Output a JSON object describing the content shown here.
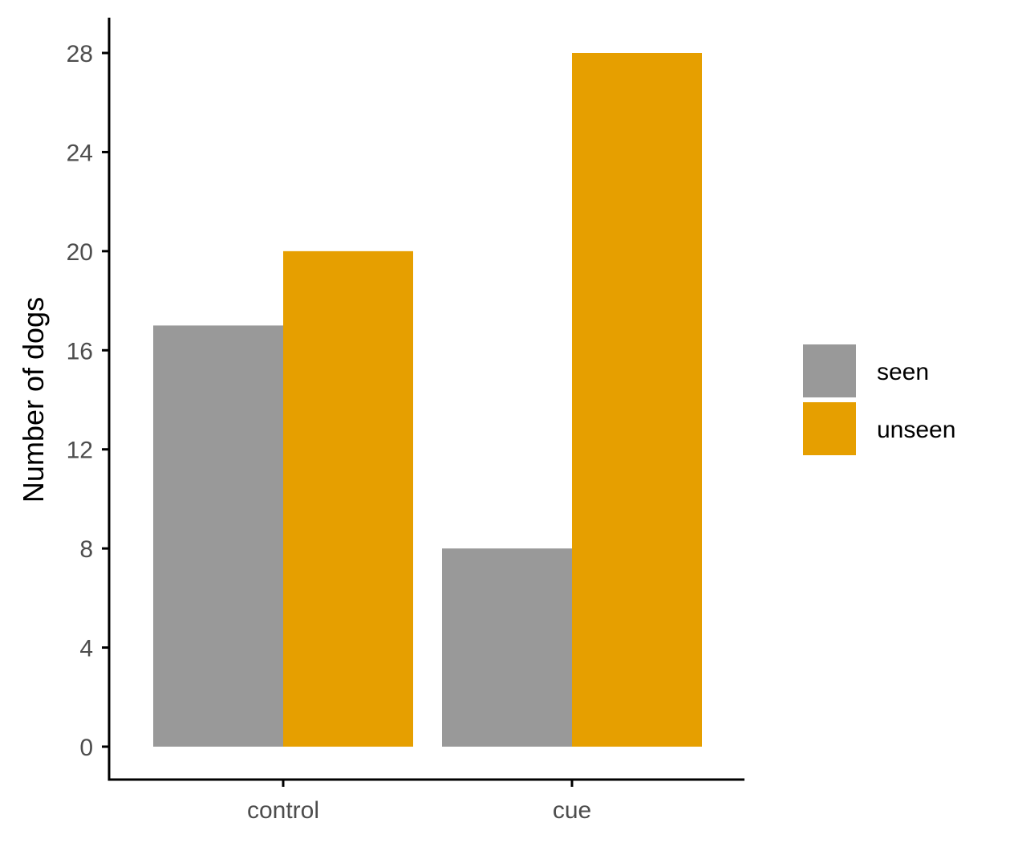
{
  "chart_data": {
    "type": "bar",
    "title": "",
    "xlabel": "",
    "ylabel": "Number of dogs",
    "categories": [
      "control",
      "cue"
    ],
    "series": [
      {
        "name": "seen",
        "values": [
          17,
          8
        ],
        "color": "#999999"
      },
      {
        "name": "unseen",
        "values": [
          20,
          28
        ],
        "color": "#E69F00"
      }
    ],
    "ylim": [
      0,
      28
    ],
    "yticks": [
      0,
      4,
      8,
      12,
      16,
      20,
      24,
      28
    ],
    "grid": false,
    "legend_position": "right"
  }
}
